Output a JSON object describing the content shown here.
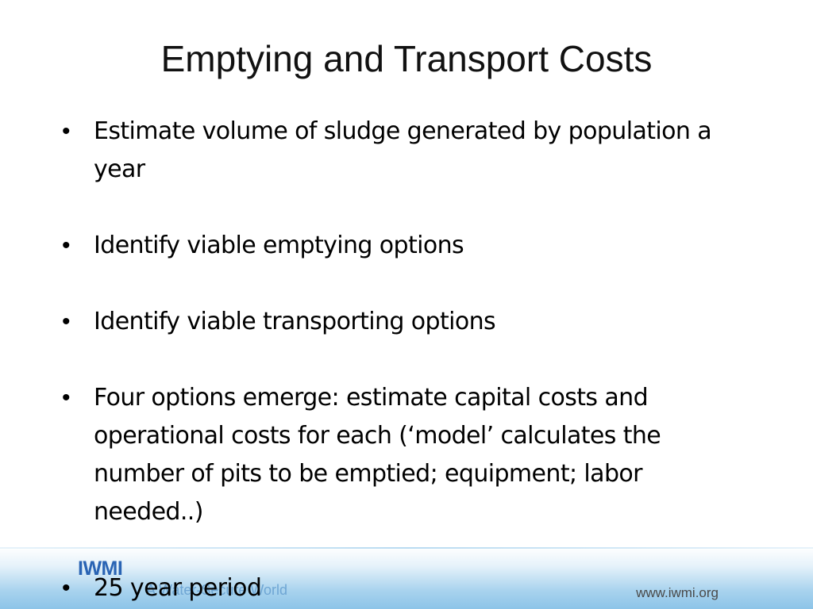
{
  "slide": {
    "title": "Emptying and Transport Costs",
    "bullets": [
      "Estimate volume of sludge generated by population a year",
      "Identify viable emptying options",
      "Identify viable transporting options",
      "Four options emerge:  estimate capital costs and operational costs for each (‘model’ calculates the number of pits to be emptied; equipment; labor needed..)",
      "25 year period"
    ],
    "bullet_glyph": "•"
  },
  "footer": {
    "logo_text": "IWMI",
    "tagline": "A Water-Secure World",
    "url": "www.iwmi.org",
    "band_color": "#8cc4e8",
    "logo_color": "#2a64b4"
  }
}
